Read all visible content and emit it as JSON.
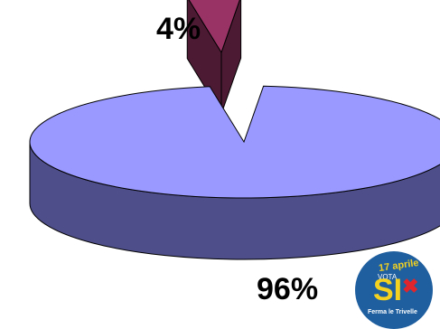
{
  "chart_data": {
    "type": "pie",
    "slices": [
      {
        "label": "96%",
        "value": 96,
        "color": "#9999ff",
        "side_color": "#4e4e8a"
      },
      {
        "label": "4%",
        "value": 4,
        "color": "#993366",
        "side_color": "#4d1a33"
      }
    ]
  },
  "badge": {
    "date": "17 aprile",
    "vote": "VOTA",
    "si": "SI",
    "x_mark": "✖",
    "slogan": "Ferma le Trivelle",
    "colors": {
      "circle": "#1f5f9f",
      "text": "#f4d21f",
      "x": "#e0262c"
    }
  }
}
